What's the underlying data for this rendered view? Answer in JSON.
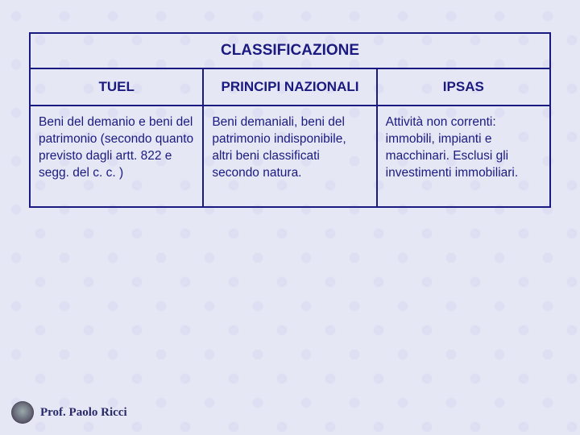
{
  "slide": {
    "background_color": "#e6e7f5",
    "border_color": "#1a1a80",
    "text_color": "#1a1a80",
    "title_fontsize": 19,
    "header_fontsize": 17,
    "body_fontsize": 15.5
  },
  "table": {
    "title": "CLASSIFICAZIONE",
    "columns": [
      "TUEL",
      "PRINCIPI NAZIONALI",
      "IPSAS"
    ],
    "rows": [
      [
        "Beni del demanio e beni del patrimonio (secondo quanto previsto dagli artt. 822 e segg. del c. c. )",
        "Beni demaniali, beni del patrimonio indisponibile, altri beni classificati secondo natura.",
        "Attività non correnti: immobili, impianti e macchinari. Esclusi gli investimenti immobiliari."
      ]
    ]
  },
  "footer": {
    "author": "Prof. Paolo Ricci"
  }
}
